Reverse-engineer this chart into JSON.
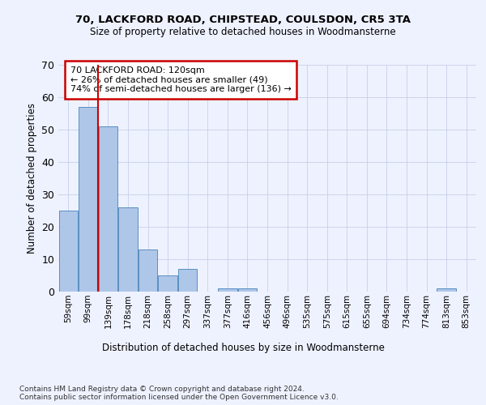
{
  "title1": "70, LACKFORD ROAD, CHIPSTEAD, COULSDON, CR5 3TA",
  "title2": "Size of property relative to detached houses in Woodmansterne",
  "xlabel": "Distribution of detached houses by size in Woodmansterne",
  "ylabel": "Number of detached properties",
  "bin_labels": [
    "59sqm",
    "99sqm",
    "139sqm",
    "178sqm",
    "218sqm",
    "258sqm",
    "297sqm",
    "337sqm",
    "377sqm",
    "416sqm",
    "456sqm",
    "496sqm",
    "535sqm",
    "575sqm",
    "615sqm",
    "655sqm",
    "694sqm",
    "734sqm",
    "774sqm",
    "813sqm",
    "853sqm"
  ],
  "bar_heights": [
    25,
    57,
    51,
    26,
    13,
    5,
    7,
    0,
    1,
    1,
    0,
    0,
    0,
    0,
    0,
    0,
    0,
    0,
    0,
    1,
    0
  ],
  "bar_color": "#aec6e8",
  "bar_edge_color": "#5a8fc2",
  "vline_x": 1.5,
  "vline_color": "#cc0000",
  "annotation_text": "70 LACKFORD ROAD: 120sqm\n← 26% of detached houses are smaller (49)\n74% of semi-detached houses are larger (136) →",
  "annotation_box_color": "#ffffff",
  "annotation_box_edge_color": "#cc0000",
  "ylim": [
    0,
    70
  ],
  "yticks": [
    0,
    10,
    20,
    30,
    40,
    50,
    60,
    70
  ],
  "footer_text": "Contains HM Land Registry data © Crown copyright and database right 2024.\nContains public sector information licensed under the Open Government Licence v3.0.",
  "background_color": "#eef2ff",
  "grid_color": "#c8cfe8"
}
